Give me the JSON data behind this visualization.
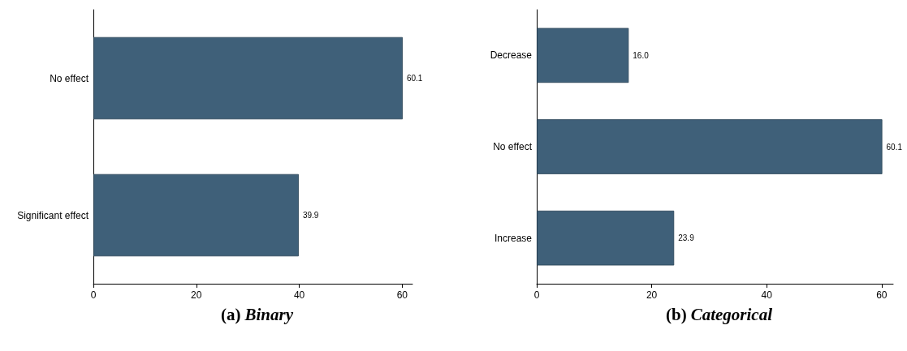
{
  "chart_data": [
    {
      "type": "bar",
      "orientation": "horizontal",
      "title": "(a) Binary",
      "categories": [
        "No effect",
        "Significant effect"
      ],
      "values": [
        60.1,
        39.9
      ],
      "value_labels": [
        "60.1",
        "39.9"
      ],
      "color": "#3f6079",
      "xlim": [
        0,
        62
      ],
      "xticks": [
        0,
        20,
        40,
        60
      ],
      "grid": false
    },
    {
      "type": "bar",
      "orientation": "horizontal",
      "title": "(b) Categorical",
      "categories": [
        "Decrease",
        "No effect",
        "Increase"
      ],
      "values": [
        16.0,
        60.1,
        23.9
      ],
      "value_labels": [
        "16.0",
        "60.1",
        "23.9"
      ],
      "color": "#3f6079",
      "xlim": [
        0,
        62
      ],
      "xticks": [
        0,
        20,
        40,
        60
      ],
      "grid": false
    }
  ]
}
